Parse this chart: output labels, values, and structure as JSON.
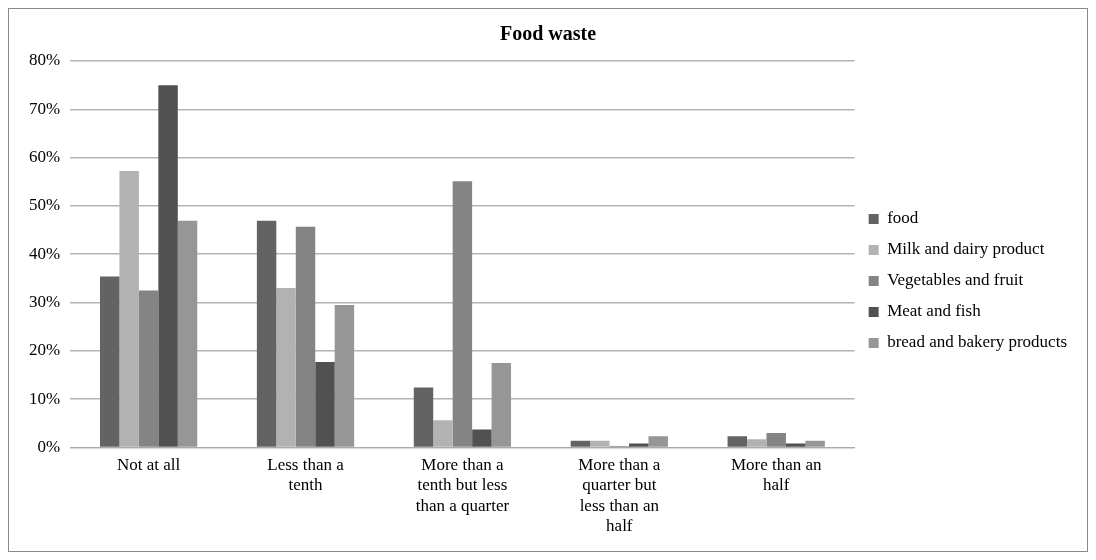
{
  "chart_data": {
    "type": "bar",
    "title": "Food waste",
    "categories": [
      "Not at all",
      "Less than a tenth",
      "More than a tenth but less than a quarter",
      "More than a quarter but less than an half",
      "More than an half"
    ],
    "series": [
      {
        "name": "food",
        "color": "#636363",
        "values": [
          35.4,
          46.9,
          12.4,
          1.4,
          2.3
        ]
      },
      {
        "name": "Milk and dairy product",
        "color": "#b2b2b2",
        "values": [
          57.2,
          33.0,
          5.6,
          1.4,
          1.7
        ]
      },
      {
        "name": "Vegetables and fruit",
        "color": "#848484",
        "values": [
          32.5,
          45.7,
          55.1,
          0.3,
          3.0
        ]
      },
      {
        "name": "Meat and fish",
        "color": "#515151",
        "values": [
          75.0,
          17.7,
          3.7,
          0.8,
          0.8
        ]
      },
      {
        "name": "bread and bakery products",
        "color": "#969696",
        "values": [
          46.9,
          29.5,
          17.5,
          2.3,
          1.4
        ]
      }
    ],
    "ylim": [
      0,
      80
    ],
    "yticks": [
      {
        "value": 0,
        "label": "0%"
      },
      {
        "value": 10,
        "label": "10%"
      },
      {
        "value": 20,
        "label": "20%"
      },
      {
        "value": 30,
        "label": "30%"
      },
      {
        "value": 40,
        "label": "40%"
      },
      {
        "value": 50,
        "label": "50%"
      },
      {
        "value": 60,
        "label": "60%"
      },
      {
        "value": 70,
        "label": "70%"
      },
      {
        "value": 80,
        "label": "80%"
      }
    ],
    "grid": "y",
    "legend": "right"
  }
}
